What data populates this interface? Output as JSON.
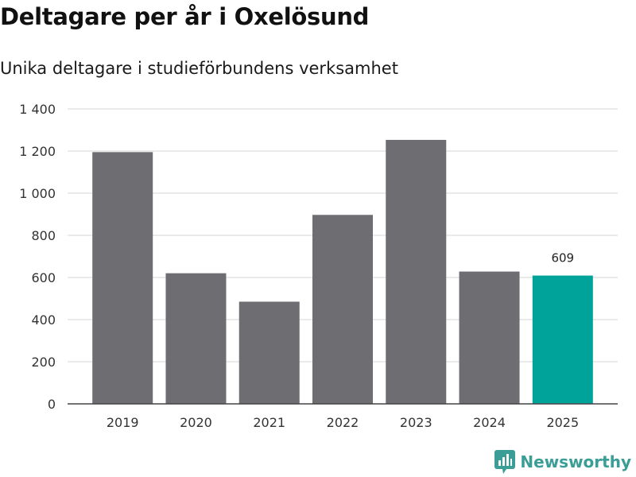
{
  "title": "Deltagare per år i Oxelösund",
  "subtitle": "Unika deltagare i studieförbundens verksamhet",
  "brand": {
    "name": "Newsworthy",
    "icon": "newsworthy-logo-icon",
    "color": "#3a9e97"
  },
  "colors": {
    "bar": "#6e6d72",
    "highlight": "#00a39a",
    "grid": "#d6d6d6",
    "axis": "#444444",
    "text": "#333333"
  },
  "chart_data": {
    "type": "bar",
    "categories": [
      "2019",
      "2020",
      "2021",
      "2022",
      "2023",
      "2024",
      "2025"
    ],
    "values": [
      1195,
      620,
      485,
      897,
      1253,
      628,
      609
    ],
    "highlight_index": 6,
    "data_labels": [
      {
        "index": 6,
        "text": "609"
      }
    ],
    "title": "Deltagare per år i Oxelösund",
    "subtitle": "Unika deltagare i studieförbundens verksamhet",
    "xlabel": "",
    "ylabel": "",
    "ylim": [
      0,
      1400
    ],
    "yticks": [
      0,
      200,
      400,
      600,
      800,
      1000,
      1200,
      1400
    ],
    "ytick_labels": [
      "0",
      "200",
      "400",
      "600",
      "800",
      "1 000",
      "1 200",
      "1 400"
    ],
    "grid": true,
    "legend": "none"
  }
}
